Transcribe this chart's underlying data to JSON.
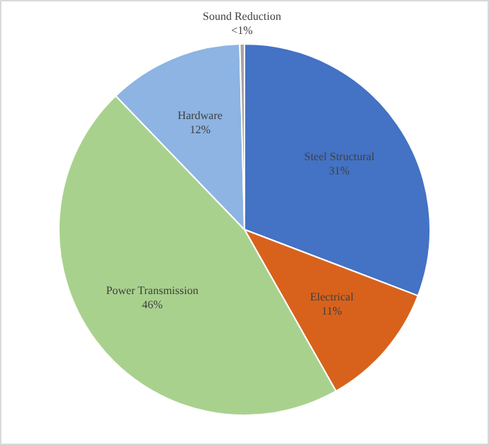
{
  "chart_data": {
    "type": "pie",
    "categories": [
      "Steel Structural",
      "Electrical",
      "Power Transmission",
      "Hardware",
      "Sound Reduction"
    ],
    "values": [
      30.8,
      11,
      46,
      11.8,
      0.4
    ],
    "colors": [
      "#4472c4",
      "#d8621c",
      "#a9d18e",
      "#8db4e2",
      "#a5a5a5"
    ],
    "value_labels": [
      "31%",
      "11%",
      "46%",
      "12%",
      "<1%"
    ],
    "legend": false
  }
}
